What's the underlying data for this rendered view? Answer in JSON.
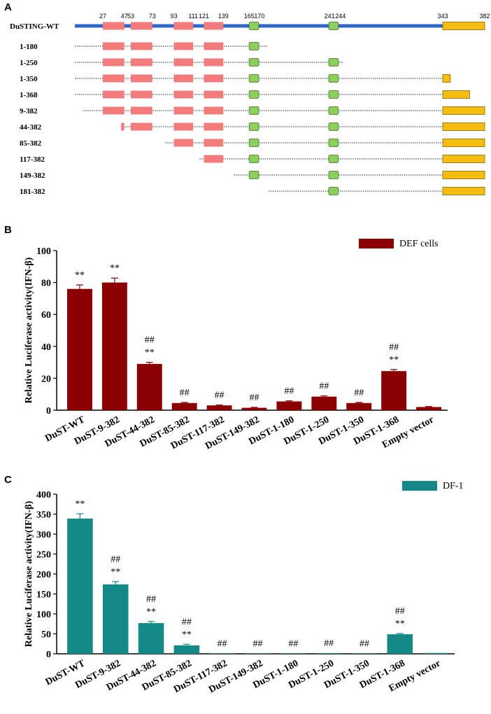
{
  "panel_a": {
    "letter": "A",
    "wt_label": "DuSTING-WT",
    "positions": [
      "27",
      "47",
      "53",
      "73",
      "93",
      "111",
      "121",
      "139",
      "165",
      "170",
      "241",
      "244",
      "343",
      "382"
    ],
    "constructs": [
      "1-180",
      "1-250",
      "1-350",
      "1-368",
      "9-382",
      "44-382",
      "85-382",
      "117-382",
      "149-382",
      "181-382"
    ],
    "colors": {
      "backbone": "#3366cc",
      "tm": "#f47b7b",
      "green": "#8ccf5a",
      "ctt": "#f5bd0f"
    }
  },
  "chart_data": [
    {
      "type": "bar",
      "panel": "B",
      "legend": "DEF cells",
      "ylabel": "Relative Luciferase activity(IFN-β)",
      "ylim": [
        0,
        100
      ],
      "yticks": [
        "0",
        "20",
        "40",
        "60",
        "80",
        "100"
      ],
      "color": "#8b0000",
      "categories": [
        "DuST-WT",
        "DuST-9-382",
        "DuST-44-382",
        "DuST-85-382",
        "DuST-117-382",
        "DuST-149-382",
        "DuST-1-180",
        "DuST-1-250",
        "DuST-1-350",
        "DuST-1-368",
        "Empty vector"
      ],
      "values": [
        76,
        80,
        29,
        4.5,
        3,
        1.5,
        5.5,
        8.5,
        4.5,
        24.5,
        2
      ],
      "errors": [
        2.5,
        2.8,
        1,
        0.4,
        0.3,
        0.3,
        0.4,
        0.5,
        0.4,
        1,
        0.3
      ],
      "sig_star": [
        "**",
        "**",
        "**",
        "",
        "",
        "",
        "",
        "",
        "",
        "**",
        ""
      ],
      "sig_hash": [
        "",
        "",
        "##",
        "##",
        "##",
        "##",
        "##",
        "##",
        "##",
        "##",
        ""
      ]
    },
    {
      "type": "bar",
      "panel": "C",
      "legend": "DF-1",
      "ylabel": "Relative Luciferase activity(IFN-β)",
      "ylim": [
        0,
        400
      ],
      "yticks": [
        "0",
        "50",
        "100",
        "150",
        "200",
        "250",
        "300",
        "350",
        "400"
      ],
      "color": "#138a88",
      "categories": [
        "DuST-WT",
        "DuST-9-382",
        "DuST-44-382",
        "DuST-85-382",
        "DuST-117-382",
        "DuST-149-382",
        "DuST-1-180",
        "DuST-1-250",
        "DuST-1-350",
        "DuST-1-368",
        "Empty vector"
      ],
      "values": [
        339,
        174,
        77,
        21,
        1,
        0.5,
        1,
        1.5,
        0.5,
        49,
        2
      ],
      "errors": [
        12,
        7,
        4,
        3,
        0.3,
        0.2,
        0.3,
        0.3,
        0.2,
        2,
        0.3
      ],
      "sig_star": [
        "**",
        "**",
        "**",
        "**",
        "",
        "",
        "",
        "",
        "",
        "**",
        ""
      ],
      "sig_hash": [
        "",
        "##",
        "##",
        "##",
        "##",
        "##",
        "##",
        "##",
        "##",
        "##",
        ""
      ]
    }
  ]
}
